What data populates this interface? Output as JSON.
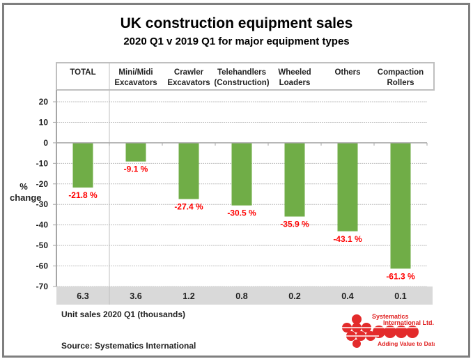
{
  "title": "UK construction equipment sales",
  "subtitle": "2020 Q1  v  2019 Q1  for major equipment types",
  "y_axis_label_line1": "%",
  "y_axis_label_line2": "change",
  "unit_sales_caption": "Unit sales 2020 Q1  (thousands)",
  "source": "Source: Systematics International",
  "logo": {
    "line1": "Systematics",
    "line2": "International Ltd.",
    "tagline": "Adding Value to Data"
  },
  "colors": {
    "bar": "#70ad47",
    "data_label": "#ff0000",
    "unit_band": "#d9d9d9",
    "frame": "#7f7f7f"
  },
  "chart_data": {
    "type": "bar",
    "title": "UK construction equipment sales",
    "subtitle": "2020 Q1 v 2019 Q1 for major equipment types",
    "xlabel": "",
    "ylabel": "% change",
    "ylim": [
      -70,
      20
    ],
    "yticks": [
      20,
      10,
      0,
      -10,
      -20,
      -30,
      -40,
      -50,
      -60,
      -70
    ],
    "grid": true,
    "categories": [
      [
        "TOTAL"
      ],
      [
        "Mini/Midi",
        "Excavators"
      ],
      [
        "Crawler",
        "Excavators"
      ],
      [
        "Telehandlers",
        "(Construction)"
      ],
      [
        "Wheeled",
        "Loaders"
      ],
      [
        "Others"
      ],
      [
        "Compaction",
        "Rollers"
      ]
    ],
    "values": [
      -21.8,
      -9.1,
      -27.4,
      -30.5,
      -35.9,
      -43.1,
      -61.3
    ],
    "data_labels": [
      "-21.8 %",
      "-9.1 %",
      "-27.4 %",
      "-30.5 %",
      "-35.9 %",
      "-43.1 %",
      "-61.3 %"
    ],
    "unit_sales_thousands": [
      "6.3",
      "3.6",
      "1.2",
      "0.8",
      "0.2",
      "0.4",
      "0.1"
    ]
  }
}
